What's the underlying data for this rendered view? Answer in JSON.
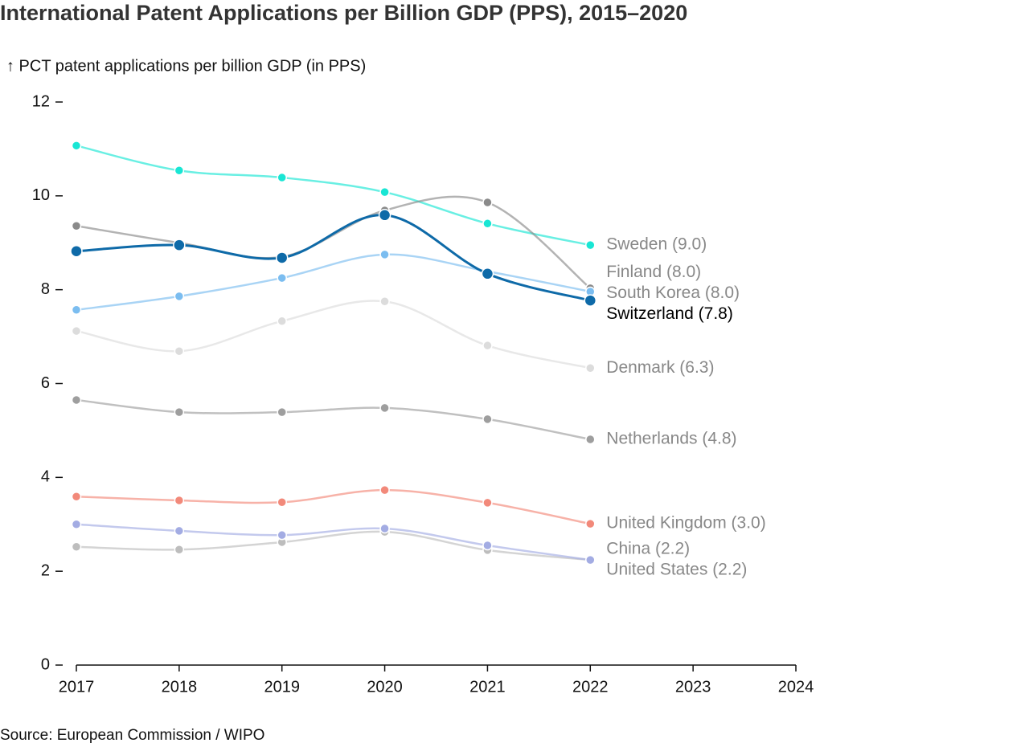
{
  "chart_data": {
    "type": "line",
    "title": "International Patent Applications per Billion GDP (PPS), 2015–2020",
    "y_label": "↑ PCT patent applications per billion GDP (in PPS)",
    "source": "Source: European Commission / WIPO",
    "x": [
      2017,
      2018,
      2019,
      2020,
      2021,
      2022
    ],
    "xlim": [
      2017,
      2024
    ],
    "xticks": [
      2017,
      2018,
      2019,
      2020,
      2021,
      2022,
      2023,
      2024
    ],
    "ylim": [
      0,
      12
    ],
    "yticks": [
      0,
      2,
      4,
      6,
      8,
      10,
      12
    ],
    "series": [
      {
        "name": "Sweden (9.0)",
        "color": "#19e6d4",
        "values": [
          11.07,
          10.54,
          10.39,
          10.08,
          9.41,
          8.95
        ]
      },
      {
        "name": "Finland (8.0)",
        "color": "#8a8a8a",
        "values": [
          9.36,
          9.0,
          8.7,
          9.69,
          9.86,
          8.03
        ]
      },
      {
        "name": "South Korea (8.0)",
        "color": "#7bbdf0",
        "values": [
          7.57,
          7.86,
          8.25,
          8.75,
          8.39,
          7.96
        ]
      },
      {
        "name": "Switzerland (7.8)",
        "color": "#0e6aa8",
        "highlight": true,
        "values": [
          8.82,
          8.95,
          8.68,
          9.59,
          8.34,
          7.77
        ]
      },
      {
        "name": "Denmark (6.3)",
        "color": "#dcdcdc",
        "values": [
          7.12,
          6.69,
          7.33,
          7.75,
          6.81,
          6.33
        ]
      },
      {
        "name": "Netherlands (4.8)",
        "color": "#9e9e9e",
        "values": [
          5.65,
          5.39,
          5.39,
          5.48,
          5.24,
          4.81
        ]
      },
      {
        "name": "United Kingdom (3.0)",
        "color": "#f2897a",
        "values": [
          3.59,
          3.51,
          3.47,
          3.73,
          3.46,
          3.01
        ]
      },
      {
        "name": "China (2.2)",
        "color": "#bdbdbd",
        "values": [
          2.52,
          2.46,
          2.62,
          2.84,
          2.45,
          2.24
        ]
      },
      {
        "name": "United States (2.2)",
        "color": "#a3acE3",
        "values": [
          3.0,
          2.86,
          2.77,
          2.91,
          2.55,
          2.24
        ]
      }
    ]
  }
}
